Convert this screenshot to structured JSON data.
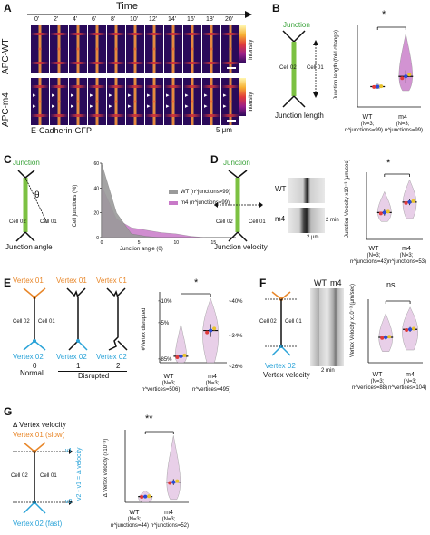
{
  "panels": {
    "a": "A",
    "b": "B",
    "c": "C",
    "d": "D",
    "e": "E",
    "f": "F",
    "g": "G"
  },
  "A": {
    "time_label": "Time",
    "times": [
      "0'",
      "2'",
      "4'",
      "6'",
      "8'",
      "10'",
      "12'",
      "14'",
      "16'",
      "18'",
      "20'"
    ],
    "row1": "APC-WT",
    "row2": "APC-m4",
    "intensity": "Intensity",
    "marker": "E-Cadherin-GFP",
    "scale": "5 μm"
  },
  "B": {
    "junction": "Junction",
    "cell02": "Cell 02",
    "cell01": "Cell 01",
    "caption": "Junction length",
    "ylabel": "Junction length (fold change)",
    "sig": "*",
    "g1": "WT",
    "g2": "m4",
    "n1": "(N=3;",
    "n2": "(N=3;",
    "sub1": "n^junctions=99)",
    "sub2": "n^junctions=99)"
  },
  "C": {
    "junction": "Junction",
    "theta": "θ",
    "cell02": "Cell 02",
    "cell01": "Cell 01",
    "caption": "Junction angle",
    "ylabel": "Cell junctions (%)",
    "xlabel": "Junction angle (θ)",
    "legend_wt": "WT (n^junctions=99)",
    "legend_m4": "m4 (n^junctions=99)"
  },
  "D": {
    "junction": "Junction",
    "cell02": "Cell 02",
    "cell01": "Cell 01",
    "caption": "Junction velocity",
    "wt": "WT",
    "m4": "m4",
    "min": "2 min",
    "um": "2 μm",
    "ylabel": "Junction Velocity x10⁻³ (μm/sec)",
    "sig": "*",
    "g1": "WT",
    "g2": "m4",
    "n1": "(N=3;",
    "n2": "(N=3;",
    "sub1": "n^junctions=43)",
    "sub2": "n^junctions=53)"
  },
  "E": {
    "v01": "Vertex 01",
    "v02": "Vertex 02",
    "cell02": "Cell 02",
    "cell01": "Cell 01",
    "n0": "0",
    "n1": "1",
    "n2": "2",
    "normal": "Normal",
    "disrupted": "Disrupted",
    "ylabel": "#Vertex disrupted",
    "sig": "*",
    "p10": "~10%",
    "p5": "~5%",
    "p85": "~85%",
    "p40": "~40%",
    "p34": "~34%",
    "p26": "~26%",
    "g1": "WT",
    "g2": "m4",
    "nn1": "(N=3;",
    "nn2": "(N=3;",
    "sub1": "n^vertices=506)",
    "sub2": "n^vertices=495)"
  },
  "F": {
    "cell02": "Cell 02",
    "cell01": "Cell 01",
    "v02": "Vertex 02",
    "caption": "Vertex velocity",
    "wt": "WT",
    "m4": "m4",
    "min": "2 min",
    "ylabel": "Vertex Velocity x10⁻³ (μm/sec)",
    "sig": "ns",
    "g1": "WT",
    "g2": "m4",
    "n1": "(N=3;",
    "n2": "(N=3;",
    "sub1": "n^vertices=88)",
    "sub2": "n^vertices=104)"
  },
  "G": {
    "title": "Δ Vertex velocity",
    "v01": "Vertex 01 (slow)",
    "v02": "Vertex 02 (fast)",
    "cell02": "Cell 02",
    "cell01": "Cell 01",
    "v1": "v1",
    "v2": "v2",
    "formula": "v2 - v1 = Δ velocity",
    "ylabel": "Δ Vertex velocity (x10⁻³)",
    "sig": "**",
    "g1": "WT",
    "g2": "m4",
    "n1": "(N=3;",
    "n2": "(N=3;",
    "sub1": "n^junctions=44)",
    "sub2": "n^junctions=52)"
  },
  "colors": {
    "junction": "#3aa33a",
    "vertex_top": "#e8872a",
    "vertex_bottom": "#2aa3d8",
    "m4_fill": "#c879c8",
    "wt_fill": "#9a9a9a"
  },
  "chart_data": [
    {
      "panel": "B",
      "type": "violin",
      "categories": [
        "WT",
        "m4"
      ],
      "values": [
        1.0,
        1.5
      ],
      "title": "",
      "ylabel": "Junction length (fold change)",
      "xlabel": ""
    },
    {
      "panel": "C",
      "type": "area",
      "x": [
        0,
        2,
        4,
        6,
        8,
        10,
        12,
        14,
        16,
        18
      ],
      "series": [
        {
          "name": "WT",
          "values": [
            60,
            20,
            3,
            1,
            0,
            0,
            0,
            0,
            0,
            0
          ]
        },
        {
          "name": "m4",
          "values": [
            42,
            15,
            8,
            6,
            4,
            3,
            1,
            0,
            0,
            0
          ]
        }
      ],
      "xlabel": "Junction angle (θ)",
      "ylabel": "Cell junctions (%)"
    },
    {
      "panel": "D",
      "type": "violin",
      "categories": [
        "WT",
        "m4"
      ],
      "values": [
        3.8,
        4.5
      ],
      "ylabel": "Junction Velocity x10⁻³ (μm/sec)"
    },
    {
      "panel": "E",
      "type": "violin",
      "categories": [
        "WT",
        "m4"
      ],
      "values": [
        0.2,
        1.0
      ],
      "ylabel": "#Vertex disrupted"
    },
    {
      "panel": "F",
      "type": "violin",
      "categories": [
        "WT",
        "m4"
      ],
      "values": [
        4.1,
        4.6
      ],
      "ylabel": "Vertex Velocity x10⁻³ (μm/sec)"
    },
    {
      "panel": "G",
      "type": "violin",
      "categories": [
        "WT",
        "m4"
      ],
      "values": [
        0.2,
        0.7
      ],
      "ylabel": "Δ Vertex velocity (x10⁻³)"
    }
  ]
}
